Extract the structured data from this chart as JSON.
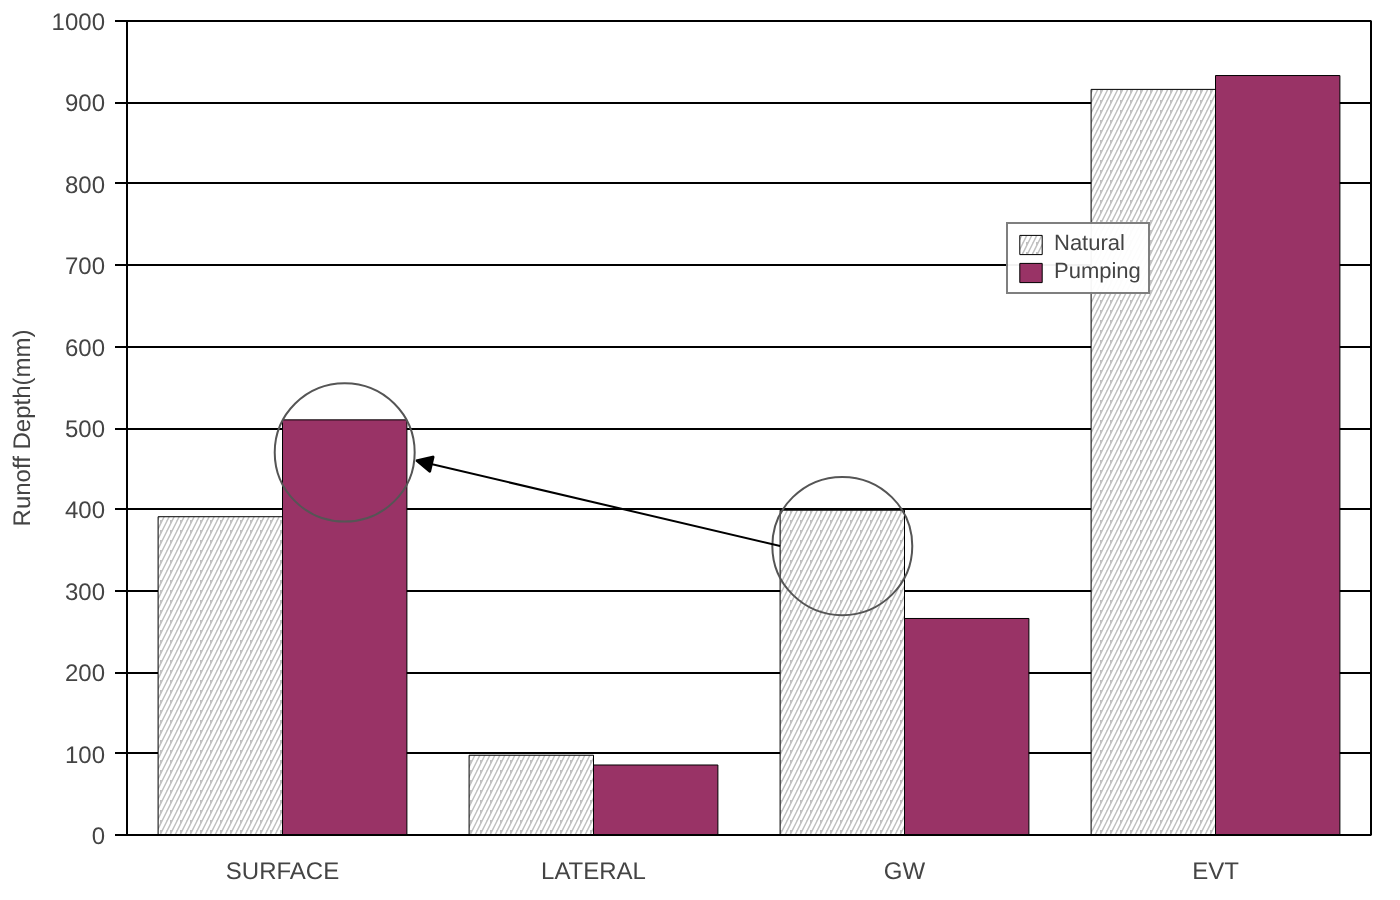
{
  "chart_data": {
    "type": "bar",
    "ylabel": "Runoff Depth(mm)",
    "categories": [
      "SURFACE",
      "LATERAL",
      "GW",
      "EVT"
    ],
    "series": [
      {
        "name": "Natural",
        "color": "#c0c0c0",
        "values": [
          391,
          98,
          399,
          916
        ]
      },
      {
        "name": "Pumping",
        "color": "#993366",
        "values": [
          510,
          86,
          266,
          933
        ]
      }
    ],
    "ylim": [
      0,
      1000
    ],
    "yticks": [
      0,
      100,
      200,
      300,
      400,
      500,
      600,
      700,
      800,
      900,
      1000
    ],
    "grid": "y",
    "legend": "right"
  }
}
